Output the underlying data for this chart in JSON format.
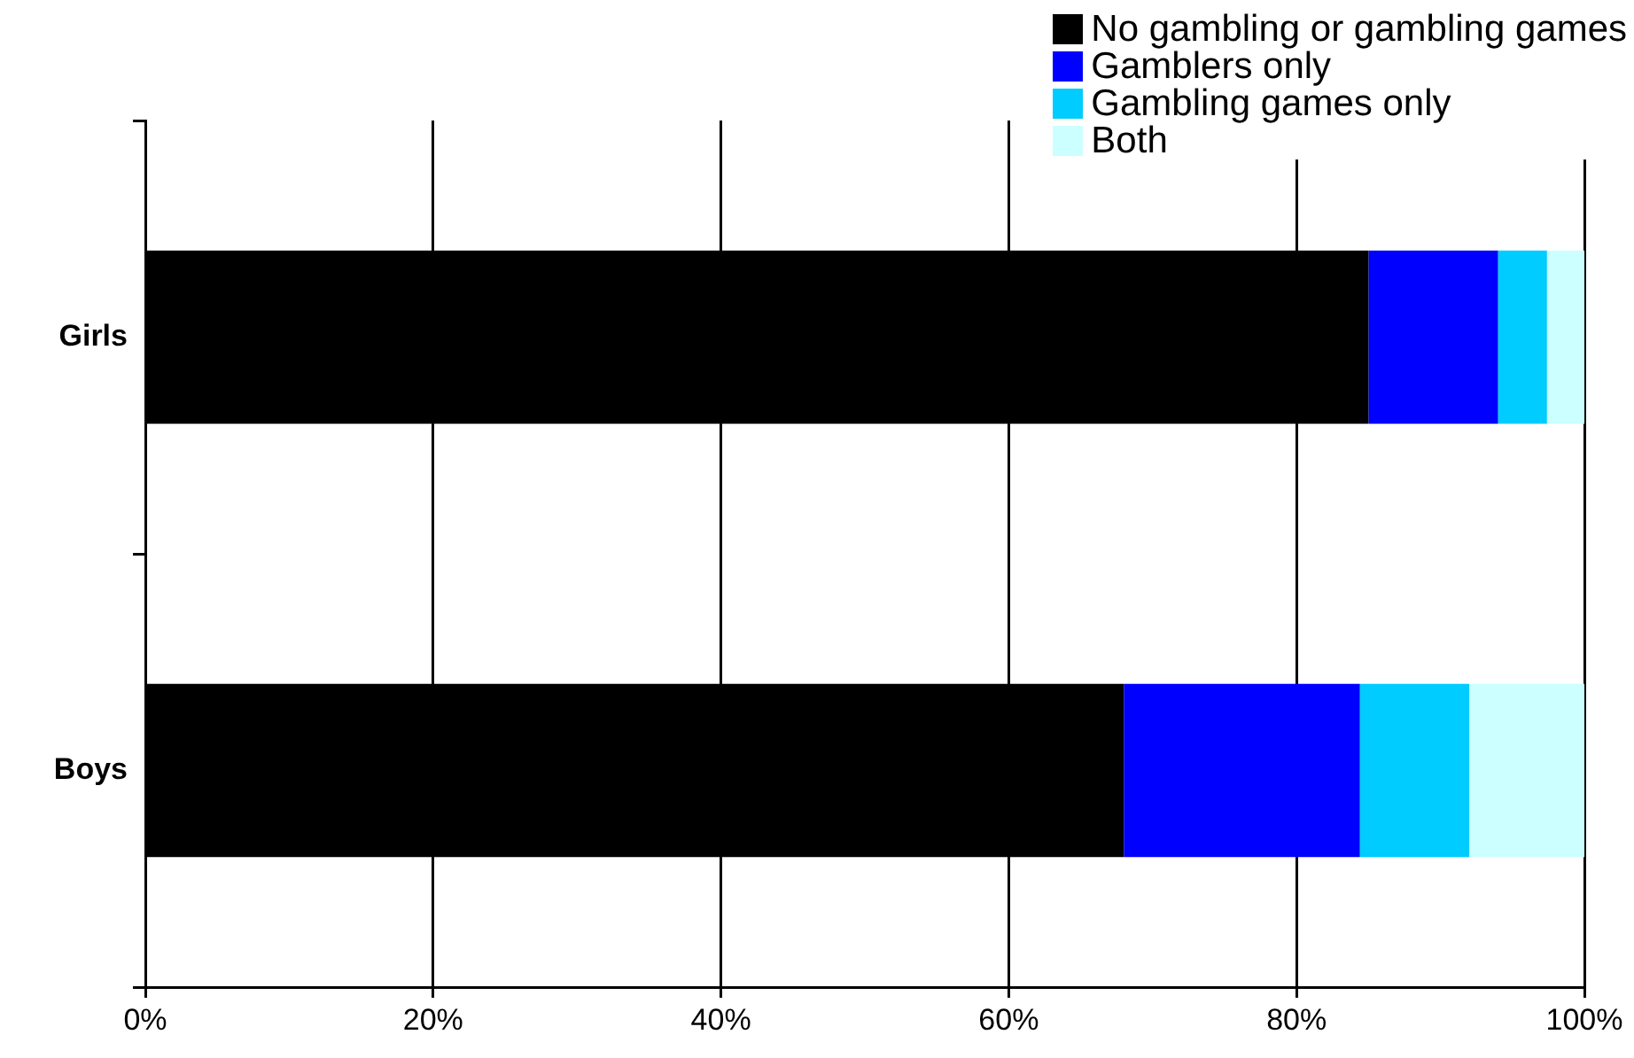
{
  "chart_data": {
    "type": "bar",
    "orientation": "horizontal",
    "stacked": true,
    "categories": [
      "Girls",
      "Boys"
    ],
    "series": [
      {
        "name": "No gambling or gambling games",
        "color": "#000000",
        "values": [
          85,
          68
        ]
      },
      {
        "name": "Gamblers only",
        "color": "#0000ff",
        "values": [
          9,
          16.4
        ]
      },
      {
        "name": "Gambling games only",
        "color": "#00ccff",
        "values": [
          3.4,
          7.6
        ]
      },
      {
        "name": "Both",
        "color": "#ccffff",
        "values": [
          2.6,
          8
        ]
      }
    ],
    "xlim": [
      0,
      100
    ],
    "xticks": [
      {
        "value": 0,
        "label": "0%"
      },
      {
        "value": 20,
        "label": "20%"
      },
      {
        "value": 40,
        "label": "40%"
      },
      {
        "value": 60,
        "label": "60%"
      },
      {
        "value": 80,
        "label": "80%"
      },
      {
        "value": 100,
        "label": "100%"
      }
    ],
    "grid": "x",
    "legend": "top right"
  }
}
